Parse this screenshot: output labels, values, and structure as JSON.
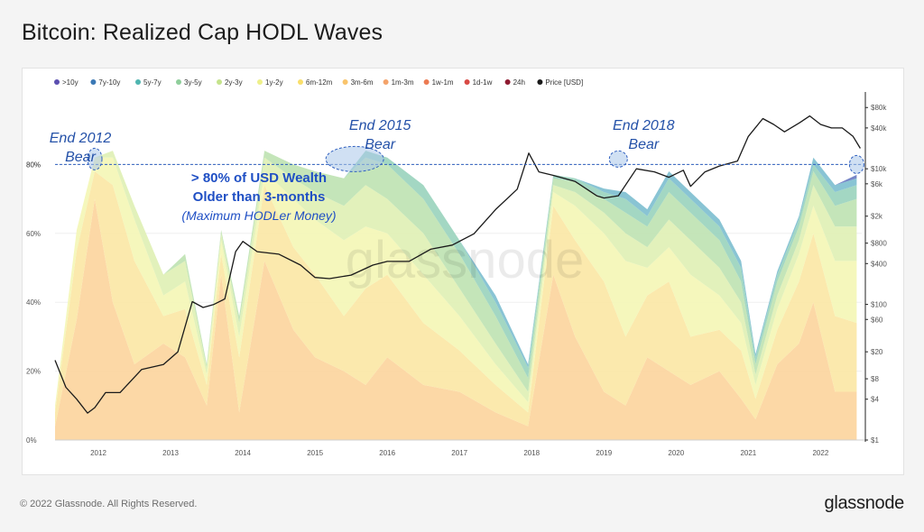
{
  "header": {
    "title": "Bitcoin: Realized Cap HODL Waves"
  },
  "footer": {
    "copyright": "© 2022 Glassnode. All Rights Reserved.",
    "logo": "glassnode"
  },
  "watermark": "glassnode",
  "colors": {
    "price_line": "#1a1a1a",
    "annotation": "#2451a8",
    "highlight_text": "#1f4fc4",
    "dashed_line": "#2f5fbf",
    "ellipse_fill": "#a9c7ea"
  },
  "annotations": {
    "bear_2012": [
      "End 2012",
      "Bear"
    ],
    "bear_2015": [
      "End 2015",
      "Bear"
    ],
    "bear_2018": [
      "End 2018",
      "Bear"
    ],
    "headline_1": "> 80% of USD Wealth",
    "headline_2": "Older than 3-months",
    "headline_3": "(Maximum HODLer Money)"
  },
  "chart_data": {
    "type": "area",
    "title": "Bitcoin: Realized Cap HODL Waves",
    "stacking": "stacked-percent",
    "legend_position": "top-left",
    "grid": true,
    "x_ticks": [
      "2012",
      "2013",
      "2014",
      "2015",
      "2016",
      "2017",
      "2018",
      "2019",
      "2020",
      "2021",
      "2022"
    ],
    "x": [
      2011.4,
      2011.7,
      2011.95,
      2012.2,
      2012.5,
      2012.9,
      2013.2,
      2013.5,
      2013.7,
      2013.95,
      2014.3,
      2014.7,
      2015.0,
      2015.4,
      2015.7,
      2016.0,
      2016.5,
      2017.0,
      2017.5,
      2017.95,
      2018.3,
      2018.6,
      2019.0,
      2019.3,
      2019.6,
      2019.9,
      2020.2,
      2020.6,
      2020.9,
      2021.1,
      2021.4,
      2021.7,
      2021.9,
      2022.2,
      2022.5
    ],
    "y_left_ticks": [
      "0%",
      "20%",
      "40%",
      "60%",
      "80%"
    ],
    "y_left_lim": [
      0,
      100
    ],
    "y_right_ticks": [
      "$1",
      "$4",
      "$8",
      "$20",
      "$60",
      "$100",
      "$400",
      "$800",
      "$2k",
      "$6k",
      "$10k",
      "$40k",
      "$80k"
    ],
    "y_right_scale": "log",
    "y_right_lim": [
      1,
      120000
    ],
    "threshold": {
      "value": 80,
      "label": "80%"
    },
    "series": [
      {
        "name": "3m-6m",
        "color": "#fcd59e",
        "values": [
          4,
          35,
          70,
          40,
          22,
          28,
          24,
          10,
          48,
          8,
          52,
          32,
          24,
          20,
          16,
          24,
          16,
          14,
          8,
          4,
          48,
          30,
          14,
          10,
          24,
          20,
          16,
          20,
          12,
          6,
          22,
          28,
          40,
          14,
          14
        ]
      },
      {
        "name": "6m-12m",
        "color": "#fbe7a6",
        "values": [
          4,
          20,
          8,
          34,
          30,
          8,
          14,
          6,
          6,
          16,
          22,
          24,
          24,
          16,
          28,
          24,
          18,
          12,
          8,
          4,
          20,
          28,
          32,
          20,
          18,
          26,
          14,
          12,
          14,
          6,
          10,
          18,
          20,
          22,
          20
        ]
      },
      {
        "name": "1y-2y",
        "color": "#f4f6b6",
        "values": [
          2,
          6,
          4,
          8,
          12,
          6,
          8,
          3,
          4,
          6,
          4,
          14,
          16,
          22,
          18,
          12,
          14,
          10,
          6,
          3,
          4,
          10,
          14,
          22,
          8,
          10,
          18,
          10,
          8,
          4,
          6,
          8,
          8,
          16,
          18
        ]
      },
      {
        "name": "2y-3y",
        "color": "#dff0b5",
        "values": [
          0,
          0,
          0,
          2,
          4,
          6,
          6,
          2,
          2,
          4,
          4,
          6,
          8,
          10,
          12,
          10,
          12,
          8,
          6,
          3,
          2,
          4,
          6,
          8,
          6,
          8,
          10,
          8,
          6,
          3,
          4,
          4,
          6,
          10,
          10
        ]
      },
      {
        "name": "3y-5y",
        "color": "#bfe3b3",
        "values": [
          0,
          0,
          0,
          0,
          0,
          0,
          2,
          1,
          1,
          2,
          2,
          4,
          6,
          8,
          8,
          10,
          10,
          10,
          8,
          4,
          2,
          3,
          4,
          6,
          6,
          8,
          8,
          8,
          6,
          3,
          4,
          4,
          4,
          6,
          8
        ]
      },
      {
        "name": "5y-7y",
        "color": "#9bd4be",
        "values": [
          0,
          0,
          0,
          0,
          0,
          0,
          0,
          0,
          0,
          0,
          0,
          0,
          0,
          0,
          2,
          2,
          4,
          4,
          4,
          3,
          1,
          1,
          2,
          4,
          3,
          4,
          4,
          4,
          4,
          2,
          2,
          2,
          2,
          4,
          4
        ]
      },
      {
        "name": "7y-10y",
        "color": "#7fbfd0",
        "values": [
          0,
          0,
          0,
          0,
          0,
          0,
          0,
          0,
          0,
          0,
          0,
          0,
          0,
          0,
          0,
          0,
          0,
          0,
          2,
          1,
          0,
          0,
          1,
          2,
          2,
          2,
          2,
          2,
          2,
          1,
          1,
          1,
          2,
          2,
          2
        ]
      },
      {
        "name": ">10y",
        "color": "#6a7cc2",
        "values": [
          0,
          0,
          0,
          0,
          0,
          0,
          0,
          0,
          0,
          0,
          0,
          0,
          0,
          0,
          0,
          0,
          0,
          0,
          0,
          0,
          0,
          0,
          0,
          0,
          0,
          0,
          0,
          0,
          0,
          0,
          0,
          0,
          0,
          0,
          1
        ]
      }
    ],
    "price_series": {
      "name": "Price [USD]",
      "color": "#1a1a1a",
      "x": [
        2011.4,
        2011.55,
        2011.7,
        2011.85,
        2011.95,
        2012.1,
        2012.3,
        2012.6,
        2012.9,
        2013.1,
        2013.3,
        2013.45,
        2013.6,
        2013.75,
        2013.9,
        2014.0,
        2014.2,
        2014.5,
        2014.8,
        2015.0,
        2015.2,
        2015.5,
        2015.8,
        2016.0,
        2016.3,
        2016.6,
        2016.9,
        2017.2,
        2017.5,
        2017.8,
        2017.96,
        2018.1,
        2018.3,
        2018.6,
        2018.9,
        2019.0,
        2019.2,
        2019.45,
        2019.7,
        2019.9,
        2020.1,
        2020.2,
        2020.4,
        2020.6,
        2020.85,
        2021.0,
        2021.2,
        2021.35,
        2021.5,
        2021.7,
        2021.85,
        2022.0,
        2022.15,
        2022.3,
        2022.45,
        2022.55
      ],
      "values": [
        15,
        6,
        4,
        2.5,
        3,
        5,
        5,
        11,
        13,
        20,
        110,
        90,
        100,
        120,
        600,
        850,
        600,
        550,
        380,
        250,
        240,
        270,
        380,
        430,
        430,
        650,
        750,
        1100,
        2500,
        5000,
        17000,
        9000,
        8000,
        6500,
        4000,
        3700,
        4000,
        10000,
        9000,
        7500,
        9500,
        5500,
        9000,
        11000,
        13000,
        30000,
        55000,
        45000,
        35000,
        47000,
        60000,
        45000,
        40000,
        40000,
        30000,
        20000
      ]
    }
  }
}
